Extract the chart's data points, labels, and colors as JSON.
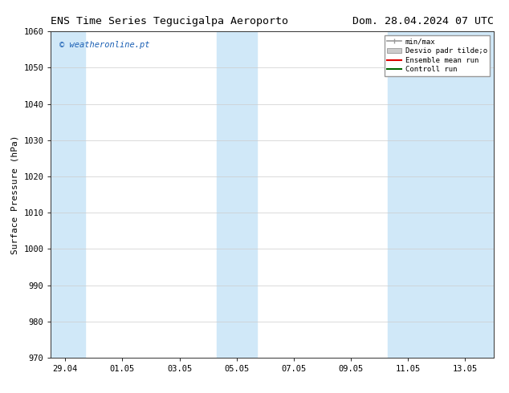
{
  "title_left": "ENS Time Series Tegucigalpa Aeroporto",
  "title_right": "Dom. 28.04.2024 07 UTC",
  "ylabel": "Surface Pressure (hPa)",
  "ylim": [
    970,
    1060
  ],
  "yticks": [
    970,
    980,
    990,
    1000,
    1010,
    1020,
    1030,
    1040,
    1050,
    1060
  ],
  "x_tick_labels": [
    "29.04",
    "01.05",
    "03.05",
    "05.05",
    "07.05",
    "09.05",
    "11.05",
    "13.05"
  ],
  "x_tick_positions": [
    0,
    2,
    4,
    6,
    8,
    10,
    12,
    14
  ],
  "xlim": [
    -0.5,
    15.0
  ],
  "shaded_bands": [
    {
      "x_start": -0.5,
      "x_end": 0.7,
      "color": "#d0e8f8"
    },
    {
      "x_start": 5.3,
      "x_end": 6.7,
      "color": "#d0e8f8"
    },
    {
      "x_start": 11.3,
      "x_end": 15.0,
      "color": "#d0e8f8"
    }
  ],
  "watermark_text": "© weatheronline.pt",
  "watermark_color": "#1a5fb4",
  "bg_color": "#ffffff",
  "plot_bg_color": "#ffffff",
  "legend_labels": [
    "min/max",
    "Desvio padr tilde;o",
    "Ensemble mean run",
    "Controll run"
  ],
  "legend_colors": [
    "#999999",
    "#cccccc",
    "#dd0000",
    "#006600"
  ],
  "title_fontsize": 9.5,
  "tick_fontsize": 7.5,
  "ylabel_fontsize": 8
}
